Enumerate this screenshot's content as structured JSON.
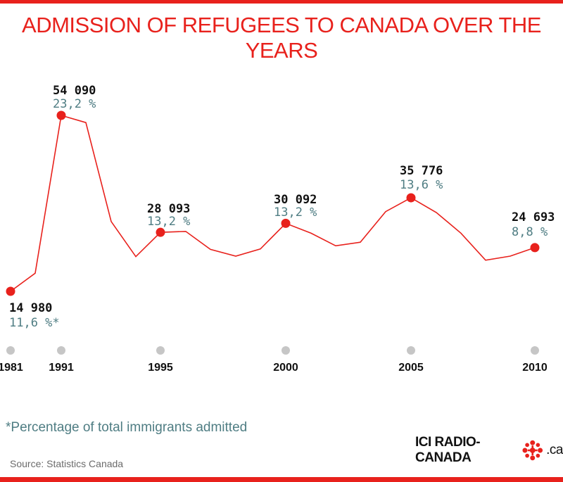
{
  "title": "ADMISSION OF REFUGEES TO CANADA OVER THE YEARS",
  "footnote": "*Percentage of total immigrants admitted",
  "source": "Source: Statistics Canada",
  "logo": {
    "text_left": "ICI RADIO-CANADA",
    "text_right": ".ca"
  },
  "colors": {
    "line": "#e8211c",
    "count_label": "#111111",
    "percent_label": "#4f7d83",
    "year_dot": "#c6c6c6",
    "title": "#e8211c"
  },
  "chart_data": {
    "type": "line",
    "title": "ADMISSION OF REFUGEES TO CANADA OVER THE YEARS",
    "x_ticks": [
      "1981",
      "1991",
      "1995",
      "2000",
      "2005",
      "2010"
    ],
    "series": [
      {
        "values": [
          {
            "x": 1981,
            "y": 14980
          },
          {
            "x": 1990,
            "y": 19000
          },
          {
            "x": 1991,
            "y": 54090
          },
          {
            "x": 1992,
            "y": 52500
          },
          {
            "x": 1993,
            "y": 30500
          },
          {
            "x": 1994,
            "y": 22700
          },
          {
            "x": 1995,
            "y": 28093
          },
          {
            "x": 1996,
            "y": 28300
          },
          {
            "x": 1997,
            "y": 24300
          },
          {
            "x": 1998,
            "y": 22800
          },
          {
            "x": 1999,
            "y": 24400
          },
          {
            "x": 2000,
            "y": 30092
          },
          {
            "x": 2001,
            "y": 27900
          },
          {
            "x": 2002,
            "y": 25100
          },
          {
            "x": 2003,
            "y": 25900
          },
          {
            "x": 2004,
            "y": 32700
          },
          {
            "x": 2005,
            "y": 35776
          },
          {
            "x": 2006,
            "y": 32500
          },
          {
            "x": 2007,
            "y": 27900
          },
          {
            "x": 2008,
            "y": 21900
          },
          {
            "x": 2009,
            "y": 22800
          },
          {
            "x": 2010,
            "y": 24693
          }
        ]
      }
    ],
    "highlights": [
      {
        "x": 1981,
        "count": "14 980",
        "percent": "11,6 %*"
      },
      {
        "x": 1991,
        "count": "54 090",
        "percent": "23,2 %"
      },
      {
        "x": 1995,
        "count": "28 093",
        "percent": "13,2 %"
      },
      {
        "x": 2000,
        "count": "30 092",
        "percent": "13,2 %"
      },
      {
        "x": 2005,
        "count": "35 776",
        "percent": "13,6 %"
      },
      {
        "x": 2010,
        "count": "24 693",
        "percent": "8,8 %"
      }
    ],
    "grid": false,
    "legend": "none"
  }
}
